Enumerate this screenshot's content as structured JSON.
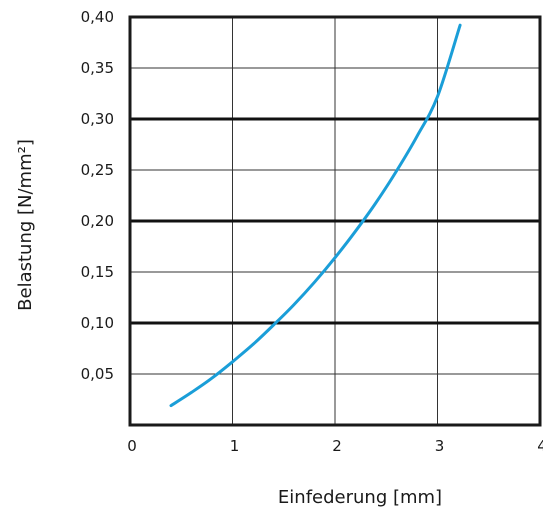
{
  "chart_data": {
    "type": "line",
    "xlabel": "Einfederung [mm]",
    "ylabel": "Belastung [N/mm²]",
    "xlim": [
      0,
      4
    ],
    "ylim": [
      0,
      0.4
    ],
    "x_ticks": [
      "0",
      "1",
      "2",
      "3",
      "4"
    ],
    "y_ticks": [
      "0,05",
      "0,10",
      "0,15",
      "0,20",
      "0,25",
      "0,30",
      "0,35",
      "0,40"
    ],
    "grid": true,
    "legend": "none",
    "series": [
      {
        "color": "#1a9ed8",
        "x": [
          0.4,
          0.6,
          0.8,
          1.0,
          1.2,
          1.4,
          1.6,
          1.8,
          2.0,
          2.2,
          2.4,
          2.6,
          2.8,
          3.0,
          3.22
        ],
        "y": [
          0.019,
          0.032,
          0.046,
          0.062,
          0.079,
          0.098,
          0.118,
          0.14,
          0.164,
          0.19,
          0.218,
          0.249,
          0.283,
          0.322,
          0.392
        ]
      }
    ]
  },
  "colors": {
    "axis": "#1a1a1a",
    "grid_thin": "#333333",
    "grid_thick": "#111111",
    "line": "#1a9ed8"
  }
}
